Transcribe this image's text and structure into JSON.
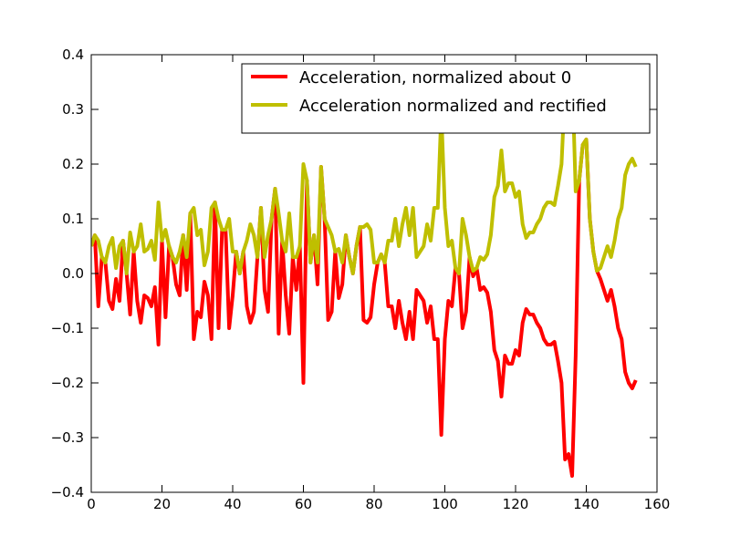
{
  "chart_data": {
    "type": "line",
    "x": [
      0,
      1,
      2,
      3,
      4,
      5,
      6,
      7,
      8,
      9,
      10,
      11,
      12,
      13,
      14,
      15,
      16,
      17,
      18,
      19,
      20,
      21,
      22,
      23,
      24,
      25,
      26,
      27,
      28,
      29,
      30,
      31,
      32,
      33,
      34,
      35,
      36,
      37,
      38,
      39,
      40,
      41,
      42,
      43,
      44,
      45,
      46,
      47,
      48,
      49,
      50,
      51,
      52,
      53,
      54,
      55,
      56,
      57,
      58,
      59,
      60,
      61,
      62,
      63,
      64,
      65,
      66,
      67,
      68,
      69,
      70,
      71,
      72,
      73,
      74,
      75,
      76,
      77,
      78,
      79,
      80,
      81,
      82,
      83,
      84,
      85,
      86,
      87,
      88,
      89,
      90,
      91,
      92,
      93,
      94,
      95,
      96,
      97,
      98,
      99,
      100,
      101,
      102,
      103,
      104,
      105,
      106,
      107,
      108,
      109,
      110,
      111,
      112,
      113,
      114,
      115,
      116,
      117,
      118,
      119,
      120,
      121,
      122,
      123,
      124,
      125,
      126,
      127,
      128,
      129,
      130,
      131,
      132,
      133,
      134,
      135,
      136,
      137,
      138,
      139,
      140,
      141,
      142,
      143,
      144,
      145,
      146,
      147,
      148,
      149,
      150,
      151,
      152,
      153,
      154
    ],
    "series": [
      {
        "name": "Acceleration, normalized about 0",
        "color": "#ff0000",
        "values": [
          0.05,
          0.07,
          -0.06,
          0.03,
          0.02,
          -0.05,
          -0.065,
          -0.01,
          -0.05,
          0.06,
          0.0,
          -0.075,
          0.04,
          -0.05,
          -0.09,
          -0.04,
          -0.045,
          -0.06,
          -0.025,
          -0.13,
          0.06,
          -0.08,
          0.05,
          0.03,
          -0.02,
          -0.04,
          0.07,
          -0.03,
          0.11,
          -0.12,
          -0.07,
          -0.08,
          -0.015,
          -0.04,
          -0.12,
          0.13,
          -0.1,
          0.08,
          0.08,
          -0.1,
          -0.04,
          0.04,
          0.0,
          0.04,
          -0.06,
          -0.09,
          -0.07,
          0.03,
          0.12,
          -0.03,
          -0.07,
          0.1,
          0.155,
          -0.11,
          0.06,
          -0.04,
          -0.11,
          0.03,
          -0.03,
          0.05,
          -0.2,
          0.17,
          0.02,
          0.07,
          -0.02,
          0.195,
          0.1,
          -0.085,
          -0.07,
          0.04,
          -0.045,
          -0.02,
          0.07,
          0.03,
          0.0,
          0.05,
          0.085,
          -0.085,
          -0.09,
          -0.08,
          -0.02,
          0.02,
          0.035,
          0.02,
          -0.06,
          -0.06,
          -0.1,
          -0.05,
          -0.09,
          -0.12,
          -0.07,
          -0.12,
          -0.03,
          -0.04,
          -0.05,
          -0.09,
          -0.06,
          -0.12,
          -0.12,
          -0.295,
          -0.12,
          -0.05,
          -0.06,
          0.01,
          0.0,
          -0.1,
          -0.07,
          0.03,
          -0.005,
          0.01,
          -0.03,
          -0.025,
          -0.035,
          -0.07,
          -0.14,
          -0.16,
          -0.225,
          -0.15,
          -0.165,
          -0.165,
          -0.14,
          -0.15,
          -0.09,
          -0.065,
          -0.075,
          -0.075,
          -0.09,
          -0.1,
          -0.12,
          -0.13,
          -0.13,
          -0.125,
          -0.16,
          -0.2,
          -0.34,
          -0.33,
          -0.37,
          -0.15,
          0.17,
          0.235,
          0.245,
          0.1,
          0.04,
          0.005,
          -0.01,
          -0.03,
          -0.05,
          -0.03,
          -0.06,
          -0.1,
          -0.12,
          -0.18,
          -0.2,
          -0.21,
          -0.195
        ]
      },
      {
        "name": "Acceleration normalized and rectified",
        "color": "#bfbf00",
        "values": [
          0.05,
          0.07,
          0.06,
          0.03,
          0.02,
          0.05,
          0.065,
          0.01,
          0.05,
          0.06,
          0.0,
          0.075,
          0.04,
          0.05,
          0.09,
          0.04,
          0.045,
          0.06,
          0.025,
          0.13,
          0.06,
          0.08,
          0.05,
          0.03,
          0.02,
          0.04,
          0.07,
          0.03,
          0.11,
          0.12,
          0.07,
          0.08,
          0.015,
          0.04,
          0.12,
          0.13,
          0.1,
          0.08,
          0.08,
          0.1,
          0.04,
          0.04,
          0.0,
          0.04,
          0.06,
          0.09,
          0.07,
          0.03,
          0.12,
          0.03,
          0.07,
          0.1,
          0.155,
          0.11,
          0.06,
          0.04,
          0.11,
          0.03,
          0.03,
          0.05,
          0.2,
          0.17,
          0.02,
          0.07,
          0.02,
          0.195,
          0.1,
          0.085,
          0.07,
          0.04,
          0.045,
          0.02,
          0.07,
          0.03,
          0.0,
          0.05,
          0.085,
          0.085,
          0.09,
          0.08,
          0.02,
          0.02,
          0.035,
          0.02,
          0.06,
          0.06,
          0.1,
          0.05,
          0.09,
          0.12,
          0.07,
          0.12,
          0.03,
          0.04,
          0.05,
          0.09,
          0.06,
          0.12,
          0.12,
          0.295,
          0.12,
          0.05,
          0.06,
          0.01,
          0.0,
          0.1,
          0.07,
          0.03,
          0.005,
          0.01,
          0.03,
          0.025,
          0.035,
          0.07,
          0.14,
          0.16,
          0.225,
          0.15,
          0.165,
          0.165,
          0.14,
          0.15,
          0.09,
          0.065,
          0.075,
          0.075,
          0.09,
          0.1,
          0.12,
          0.13,
          0.13,
          0.125,
          0.16,
          0.2,
          0.34,
          0.33,
          0.37,
          0.15,
          0.17,
          0.235,
          0.245,
          0.1,
          0.04,
          0.005,
          0.01,
          0.03,
          0.05,
          0.03,
          0.06,
          0.1,
          0.12,
          0.18,
          0.2,
          0.21,
          0.195
        ]
      }
    ],
    "xlim": [
      0,
      160
    ],
    "xticks": [
      0,
      20,
      40,
      60,
      80,
      100,
      120,
      140,
      160
    ],
    "ylim": [
      -0.4,
      0.4
    ],
    "yticks": [
      {
        "value": -0.4,
        "label": "−0.4"
      },
      {
        "value": -0.3,
        "label": "−0.3"
      },
      {
        "value": -0.2,
        "label": "−0.2"
      },
      {
        "value": -0.1,
        "label": "−0.1"
      },
      {
        "value": 0.0,
        "label": "0.0"
      },
      {
        "value": 0.1,
        "label": "0.1"
      },
      {
        "value": 0.2,
        "label": "0.2"
      },
      {
        "value": 0.3,
        "label": "0.3"
      },
      {
        "value": 0.4,
        "label": "0.4"
      }
    ],
    "legend": "upper right"
  }
}
